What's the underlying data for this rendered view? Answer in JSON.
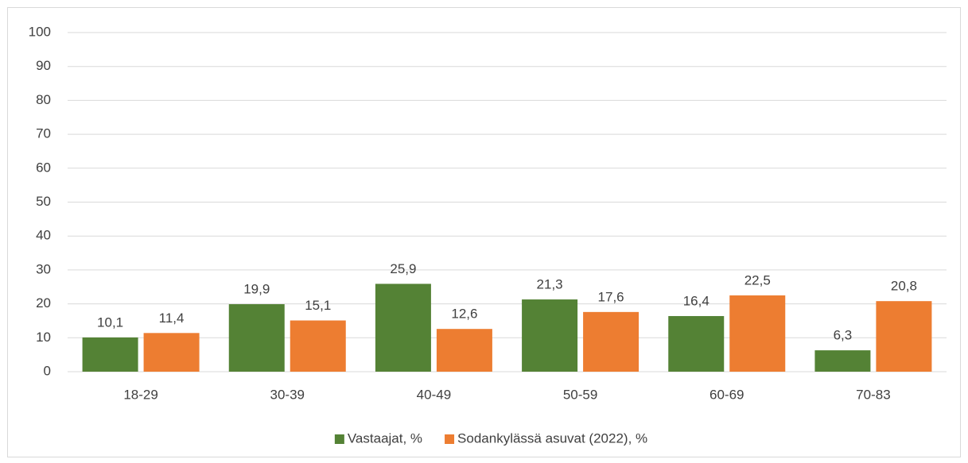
{
  "chart_data": {
    "type": "bar",
    "categories": [
      "18-29",
      "30-39",
      "40-49",
      "50-59",
      "60-69",
      "70-83"
    ],
    "series": [
      {
        "name": "Vastaajat, %",
        "color": "#548235",
        "values": [
          10.1,
          19.9,
          25.9,
          21.3,
          16.4,
          6.3
        ],
        "value_labels": [
          "10,1",
          "19,9",
          "25,9",
          "21,3",
          "16,4",
          "6,3"
        ]
      },
      {
        "name": "Sodankylässä asuvat (2022), %",
        "color": "#ed7d31",
        "values": [
          11.4,
          15.1,
          12.6,
          17.6,
          22.5,
          20.8
        ],
        "value_labels": [
          "11,4",
          "15,1",
          "12,6",
          "17,6",
          "22,5",
          "20,8"
        ]
      }
    ],
    "ylim": [
      0,
      100
    ],
    "yticks": [
      0,
      10,
      20,
      30,
      40,
      50,
      60,
      70,
      80,
      90,
      100
    ],
    "grid": true,
    "legend": "bottom"
  }
}
